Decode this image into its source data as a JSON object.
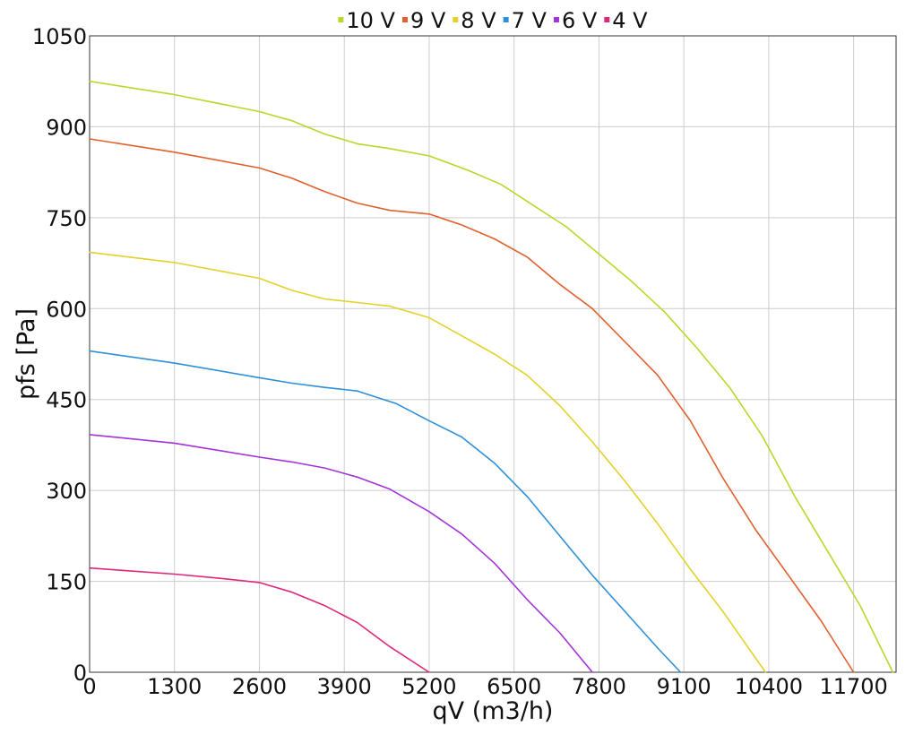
{
  "chart_data": {
    "type": "line",
    "title": "",
    "xlabel": "qV (m3/h)",
    "ylabel": "pfs [Pa]",
    "xlim": [
      0,
      12350
    ],
    "ylim": [
      0,
      1050
    ],
    "x_ticks": [
      0,
      1300,
      2600,
      3900,
      5200,
      6500,
      7800,
      9100,
      10400,
      11700
    ],
    "y_ticks": [
      0,
      150,
      300,
      450,
      600,
      750,
      900,
      1050
    ],
    "grid": true,
    "legend_position": "top-center",
    "series": [
      {
        "name": "10 V",
        "color": "#b5d92b",
        "points": [
          [
            0,
            975
          ],
          [
            1300,
            953
          ],
          [
            2600,
            925
          ],
          [
            3100,
            910
          ],
          [
            3600,
            888
          ],
          [
            4100,
            872
          ],
          [
            4600,
            864
          ],
          [
            5200,
            852
          ],
          [
            5800,
            828
          ],
          [
            6300,
            805
          ],
          [
            6800,
            770
          ],
          [
            7300,
            735
          ],
          [
            7800,
            690
          ],
          [
            8300,
            645
          ],
          [
            8800,
            595
          ],
          [
            9300,
            535
          ],
          [
            9800,
            470
          ],
          [
            10300,
            390
          ],
          [
            10800,
            290
          ],
          [
            11300,
            200
          ],
          [
            11800,
            110
          ],
          [
            12300,
            0
          ]
        ]
      },
      {
        "name": "9 V",
        "color": "#e0602e",
        "points": [
          [
            0,
            880
          ],
          [
            1300,
            858
          ],
          [
            2600,
            832
          ],
          [
            3100,
            815
          ],
          [
            3600,
            793
          ],
          [
            4100,
            774
          ],
          [
            4600,
            762
          ],
          [
            5200,
            756
          ],
          [
            5700,
            738
          ],
          [
            6200,
            715
          ],
          [
            6700,
            685
          ],
          [
            7200,
            640
          ],
          [
            7700,
            600
          ],
          [
            8200,
            545
          ],
          [
            8700,
            490
          ],
          [
            9200,
            415
          ],
          [
            9700,
            320
          ],
          [
            10200,
            235
          ],
          [
            10700,
            160
          ],
          [
            11200,
            85
          ],
          [
            11700,
            0
          ]
        ]
      },
      {
        "name": "8 V",
        "color": "#e2d22a",
        "points": [
          [
            0,
            693
          ],
          [
            1300,
            676
          ],
          [
            2600,
            650
          ],
          [
            3100,
            630
          ],
          [
            3600,
            616
          ],
          [
            4100,
            610
          ],
          [
            4600,
            604
          ],
          [
            5200,
            585
          ],
          [
            5700,
            555
          ],
          [
            6200,
            525
          ],
          [
            6700,
            490
          ],
          [
            7200,
            440
          ],
          [
            7700,
            380
          ],
          [
            8200,
            315
          ],
          [
            8700,
            245
          ],
          [
            9200,
            170
          ],
          [
            9700,
            100
          ],
          [
            10350,
            0
          ]
        ]
      },
      {
        "name": "7 V",
        "color": "#2e8fd8",
        "points": [
          [
            0,
            530
          ],
          [
            1300,
            510
          ],
          [
            2600,
            486
          ],
          [
            3100,
            477
          ],
          [
            3600,
            470
          ],
          [
            4100,
            464
          ],
          [
            4700,
            443
          ],
          [
            5200,
            415
          ],
          [
            5700,
            388
          ],
          [
            6200,
            345
          ],
          [
            6700,
            290
          ],
          [
            7200,
            225
          ],
          [
            7700,
            160
          ],
          [
            8200,
            100
          ],
          [
            8700,
            40
          ],
          [
            9050,
            0
          ]
        ]
      },
      {
        "name": "6 V",
        "color": "#a233d9",
        "points": [
          [
            0,
            392
          ],
          [
            1300,
            378
          ],
          [
            2600,
            355
          ],
          [
            3100,
            347
          ],
          [
            3600,
            337
          ],
          [
            4100,
            322
          ],
          [
            4600,
            302
          ],
          [
            5200,
            265
          ],
          [
            5700,
            228
          ],
          [
            6200,
            180
          ],
          [
            6700,
            120
          ],
          [
            7200,
            65
          ],
          [
            7700,
            0
          ]
        ]
      },
      {
        "name": "4 V",
        "color": "#e0267a",
        "points": [
          [
            0,
            172
          ],
          [
            1300,
            162
          ],
          [
            2000,
            155
          ],
          [
            2600,
            148
          ],
          [
            3100,
            132
          ],
          [
            3600,
            110
          ],
          [
            4100,
            82
          ],
          [
            4600,
            42
          ],
          [
            5200,
            0
          ]
        ]
      }
    ]
  }
}
